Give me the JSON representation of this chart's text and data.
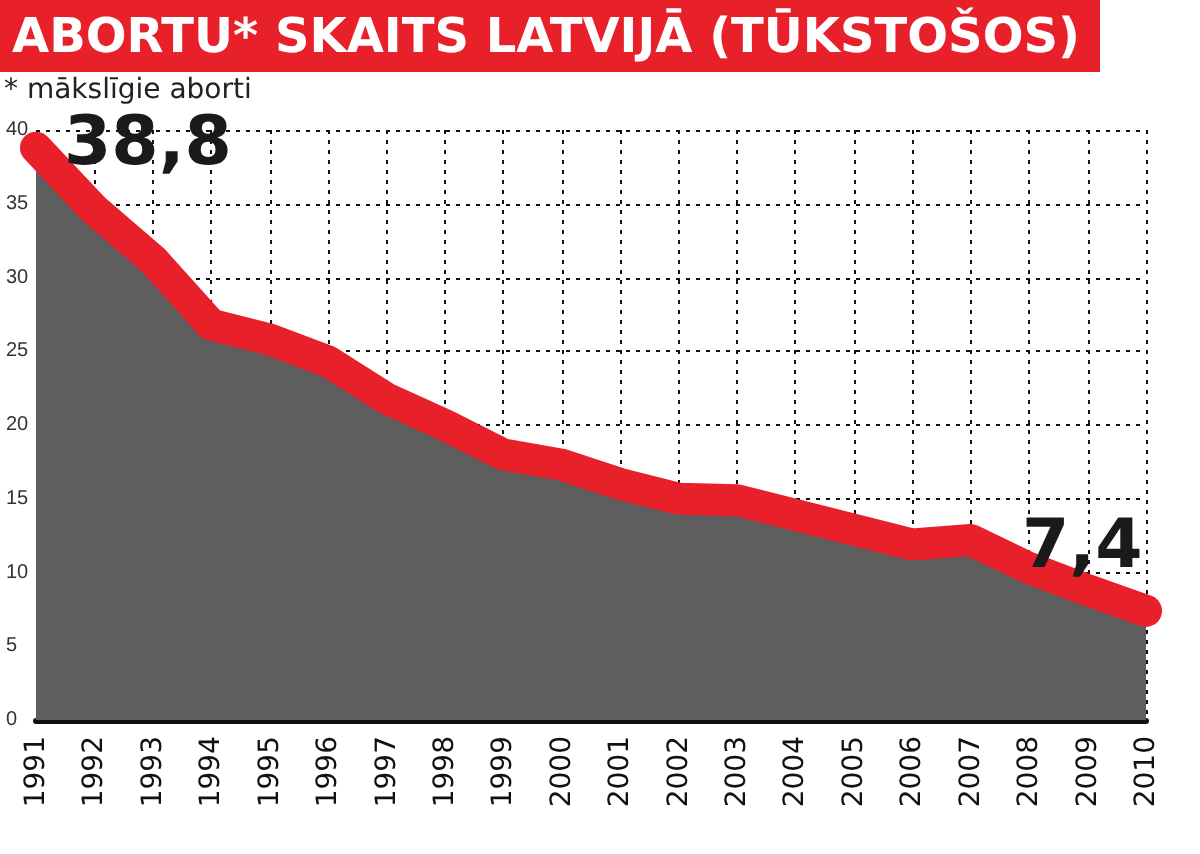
{
  "chart_data": {
    "type": "area",
    "title": "ABORTU* SKAITS LATVIJĀ (TŪKSTOŠOS)",
    "subtitle": "* mākslīgie aborti",
    "categories": [
      "1991",
      "1992",
      "1993",
      "1994",
      "1995",
      "1996",
      "1997",
      "1998",
      "1999",
      "2000",
      "2001",
      "2002",
      "2003",
      "2004",
      "2005",
      "2006",
      "2007",
      "2008",
      "2009",
      "2010"
    ],
    "series": [
      {
        "color": "#e8202a",
        "values": [
          38.8,
          34.6,
          31.2,
          26.8,
          25.8,
          24.3,
          21.8,
          20.0,
          18.0,
          17.3,
          16.0,
          15.0,
          14.9,
          13.9,
          12.9,
          11.9,
          12.2,
          10.3,
          8.8,
          7.4
        ],
        "value_labels": [
          "38,8",
          null,
          null,
          null,
          null,
          null,
          null,
          null,
          null,
          null,
          null,
          null,
          null,
          null,
          null,
          null,
          null,
          null,
          null,
          "7,4"
        ]
      }
    ],
    "ylim": [
      0,
      40
    ],
    "yticks": [
      0,
      5,
      10,
      15,
      20,
      25,
      30,
      35,
      40
    ],
    "grid": true,
    "marker": "none",
    "line_style": "solid"
  }
}
